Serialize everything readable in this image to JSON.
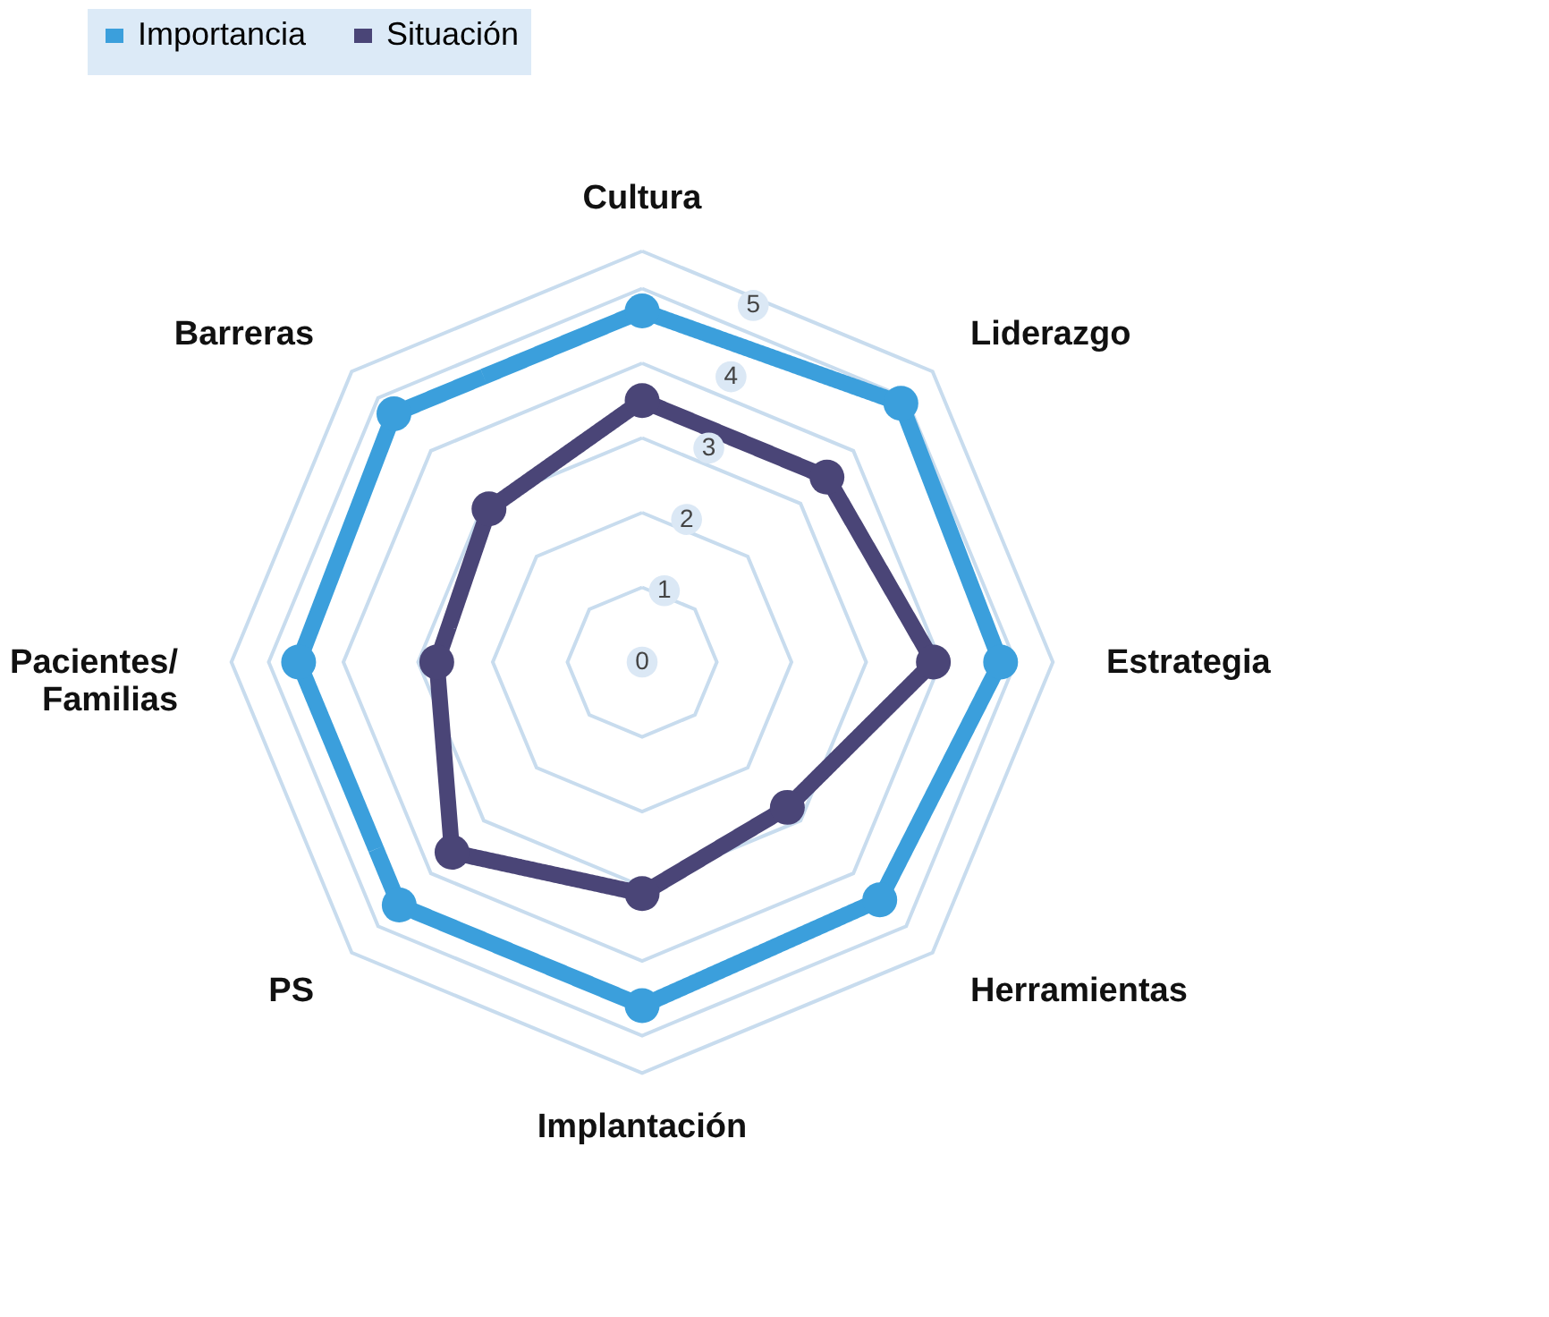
{
  "chart_data": {
    "type": "radar",
    "categories": [
      "Cultura",
      "Liderazgo",
      "Estrategia",
      "Herramientas",
      "Implantación",
      "PS",
      "Pacientes/\nFamilias",
      "Barreras"
    ],
    "series": [
      {
        "name": "Importancia",
        "color": "#3b9fdc",
        "values": [
          4.7,
          4.9,
          4.8,
          4.5,
          4.6,
          4.6,
          4.6,
          4.7
        ]
      },
      {
        "name": "Situación",
        "color": "#4a4577",
        "values": [
          3.5,
          3.5,
          3.9,
          2.75,
          3.1,
          3.6,
          2.75,
          2.9
        ]
      }
    ],
    "ylim": [
      0,
      5.5
    ],
    "yticks": [
      0,
      1,
      2,
      3,
      4,
      5
    ],
    "grid": true,
    "legend": "top",
    "marker": "circle",
    "line_style": "solid"
  }
}
